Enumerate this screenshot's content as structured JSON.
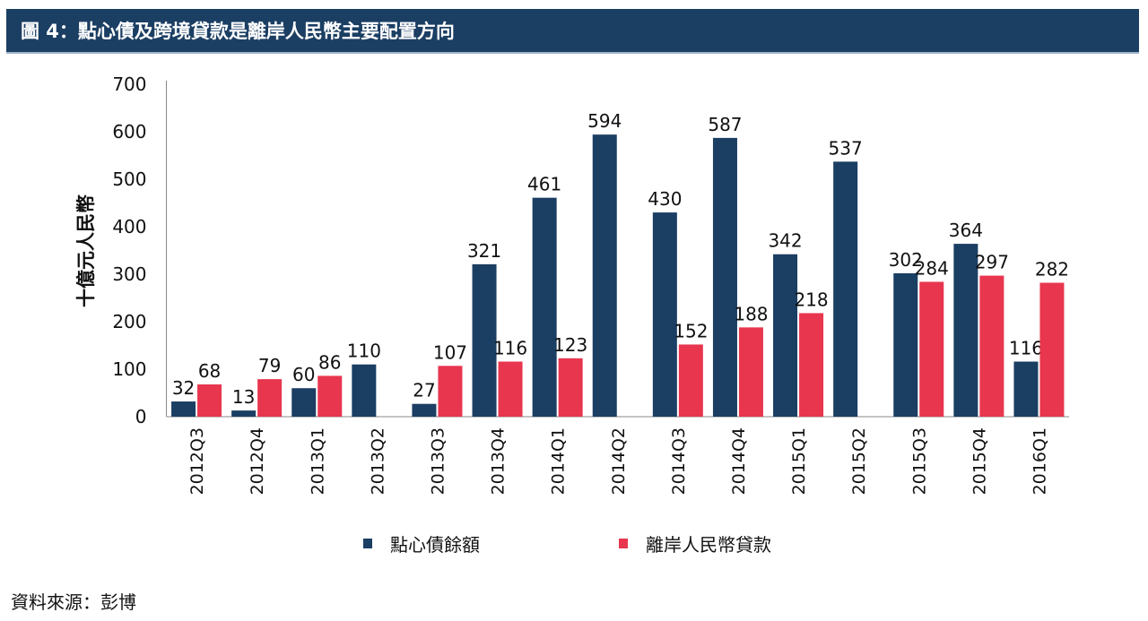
{
  "title": "圖 4：點心債及跨境貸款是離岸人民幣主要配置方向",
  "source": "資料來源：彭博",
  "chart_data": {
    "type": "bar",
    "title": "圖 4：點心債及跨境貸款是離岸人民幣主要配置方向",
    "xlabel": "",
    "ylabel": "十億元人民幣",
    "ylim": [
      0,
      700
    ],
    "yticks": [
      0,
      100,
      200,
      300,
      400,
      500,
      600,
      700
    ],
    "grid": false,
    "legend": "bottom",
    "categories": [
      "2012Q3",
      "2012Q4",
      "2013Q1",
      "2013Q2",
      "2013Q3",
      "2013Q4",
      "2014Q1",
      "2014Q2",
      "2014Q3",
      "2014Q4",
      "2015Q1",
      "2015Q2",
      "2015Q3",
      "2015Q4",
      "2016Q1"
    ],
    "series": [
      {
        "name": "點心債餘額",
        "color": "#1b3e63",
        "values": [
          32,
          13,
          60,
          110,
          27,
          321,
          461,
          594,
          430,
          587,
          342,
          537,
          302,
          364,
          116
        ]
      },
      {
        "name": "離岸人民幣貸款",
        "color": "#e8364f",
        "values": [
          68,
          79,
          86,
          null,
          107,
          116,
          123,
          null,
          152,
          188,
          218,
          null,
          284,
          297,
          282
        ]
      }
    ]
  }
}
